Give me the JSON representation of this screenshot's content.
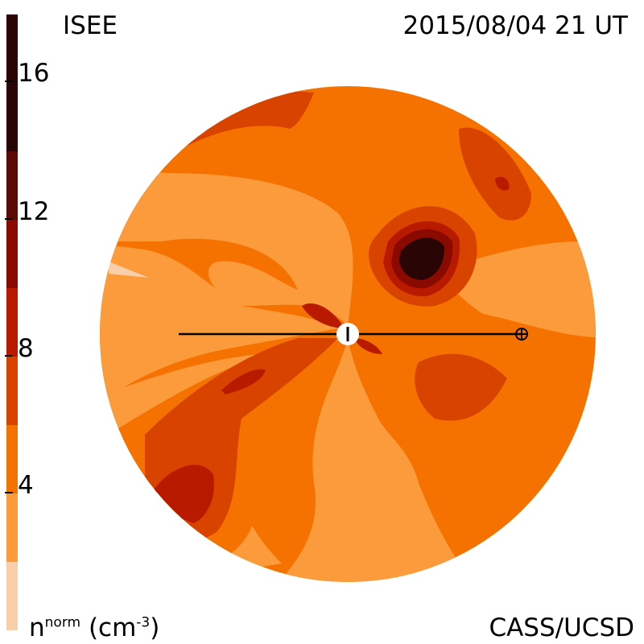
{
  "header": {
    "source": "ISEE",
    "timestamp": "2015/08/04 21 UT"
  },
  "footer": {
    "quantity": "n",
    "quantity_sup": "norm",
    "unit_open": "(cm",
    "unit_sup": "-3",
    "unit_close": ")",
    "credit": "CASS/UCSD"
  },
  "colorbar": {
    "ticks": [
      "16",
      "12",
      "8",
      "4"
    ],
    "tick_values": [
      16,
      12,
      8,
      4
    ],
    "range": [
      0,
      18
    ],
    "levels": [
      {
        "from": 0,
        "to": 2,
        "color": "#f8cfa8"
      },
      {
        "from": 2,
        "to": 6,
        "color": "#fb9b3c"
      },
      {
        "from": 6,
        "to": 10,
        "color": "#f57200"
      },
      {
        "from": 10,
        "to": 14,
        "color": "#d94300"
      },
      {
        "from": 14,
        "to": 18,
        "color": "#2a0505"
      }
    ]
  },
  "colors": {
    "c1": "#f8cfa8",
    "c2": "#fb9b3c",
    "c3": "#f57200",
    "c4": "#d94300",
    "c5": "#b81a00",
    "c6": "#8a0a00",
    "c7": "#2a0505"
  }
}
